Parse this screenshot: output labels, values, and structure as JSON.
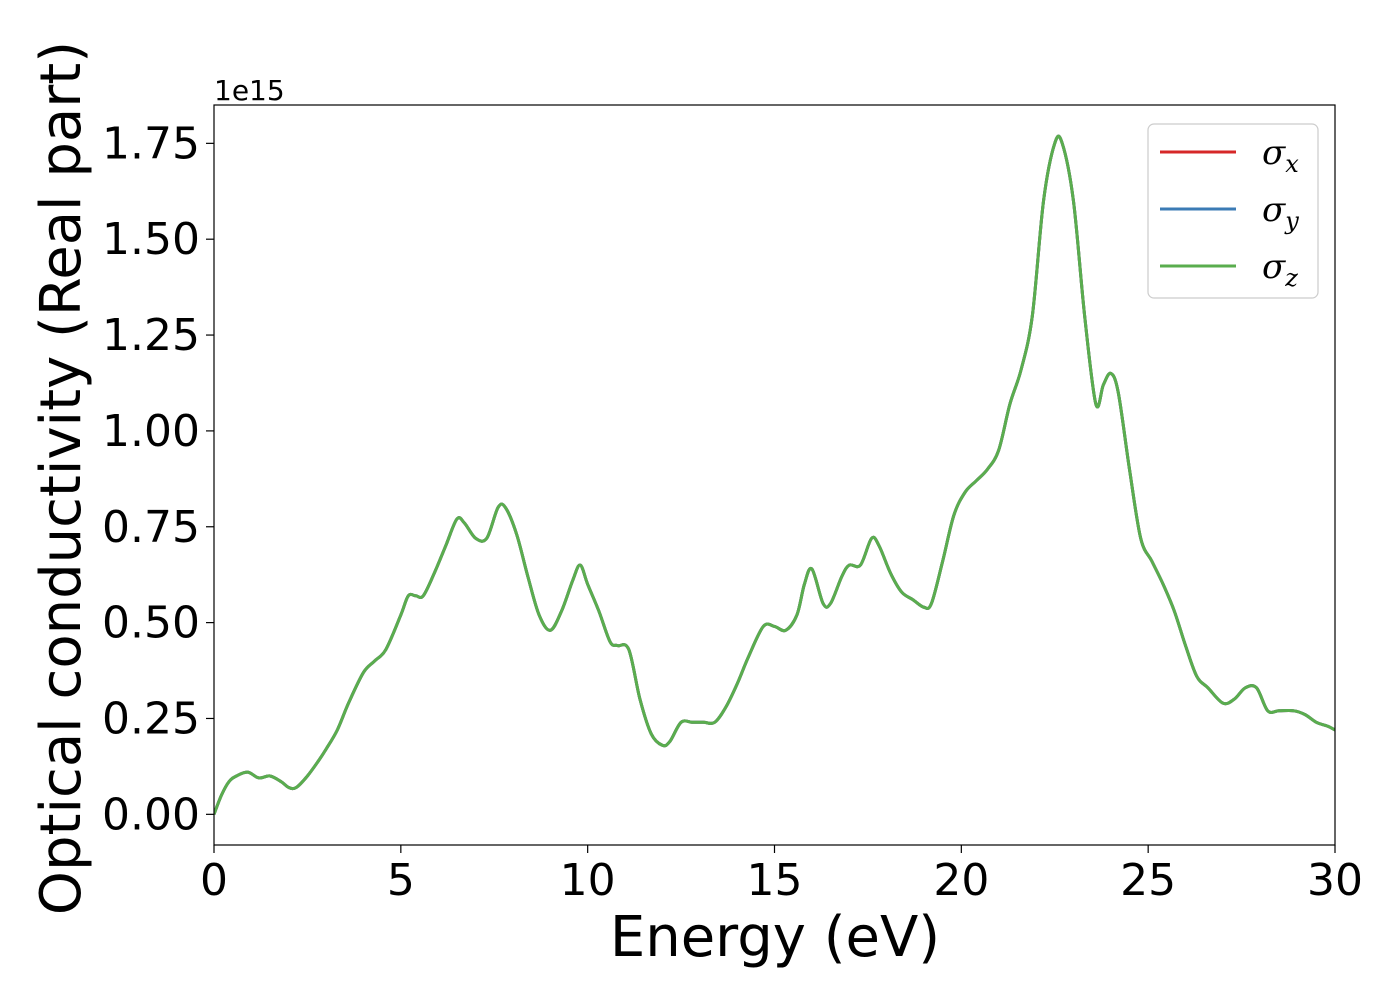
{
  "chart_data": {
    "type": "line",
    "xlabel": "Energy (eV)",
    "ylabel": "Optical conductivity (Real part)",
    "y_offset_label": "1e15",
    "xlim": [
      0,
      30
    ],
    "ylim": [
      -0.08,
      1.85
    ],
    "xticks": [
      0,
      5,
      10,
      15,
      20,
      25,
      30
    ],
    "xtick_labels": [
      "0",
      "5",
      "10",
      "15",
      "20",
      "25",
      "30"
    ],
    "yticks": [
      0.0,
      0.25,
      0.5,
      0.75,
      1.0,
      1.25,
      1.5,
      1.75
    ],
    "ytick_labels": [
      "0.00",
      "0.25",
      "0.50",
      "0.75",
      "1.00",
      "1.25",
      "1.50",
      "1.75"
    ],
    "grid": false,
    "legend_position": "top-right",
    "x": [
      0,
      0.2,
      0.4,
      0.6,
      0.9,
      1.2,
      1.5,
      1.8,
      2.0,
      2.2,
      2.5,
      2.8,
      3.0,
      3.3,
      3.6,
      4.0,
      4.3,
      4.6,
      5.0,
      5.2,
      5.4,
      5.6,
      5.9,
      6.2,
      6.5,
      6.7,
      7.0,
      7.3,
      7.6,
      7.8,
      8.1,
      8.4,
      8.7,
      9.0,
      9.3,
      9.6,
      9.8,
      10.0,
      10.3,
      10.6,
      10.8,
      11.1,
      11.4,
      11.7,
      12.0,
      12.2,
      12.5,
      12.8,
      13.1,
      13.4,
      13.7,
      14.0,
      14.3,
      14.7,
      15.0,
      15.3,
      15.6,
      15.8,
      16.0,
      16.3,
      16.5,
      16.8,
      17.0,
      17.3,
      17.6,
      17.8,
      18.1,
      18.4,
      18.7,
      19.0,
      19.2,
      19.5,
      19.8,
      20.1,
      20.4,
      20.7,
      21.0,
      21.3,
      21.6,
      21.9,
      22.2,
      22.5,
      22.7,
      23.0,
      23.3,
      23.6,
      23.8,
      24.0,
      24.2,
      24.5,
      24.8,
      25.1,
      25.4,
      25.7,
      26.0,
      26.3,
      26.6,
      27.0,
      27.3,
      27.6,
      27.9,
      28.2,
      28.5,
      28.9,
      29.2,
      29.5,
      29.8,
      30.0
    ],
    "series": [
      {
        "name": "σx",
        "sub": "x",
        "color": "#d62728",
        "values": [
          0.0,
          0.05,
          0.085,
          0.1,
          0.11,
          0.095,
          0.1,
          0.085,
          0.07,
          0.07,
          0.1,
          0.14,
          0.17,
          0.22,
          0.29,
          0.37,
          0.4,
          0.43,
          0.52,
          0.57,
          0.57,
          0.57,
          0.63,
          0.7,
          0.77,
          0.76,
          0.72,
          0.72,
          0.8,
          0.8,
          0.73,
          0.62,
          0.52,
          0.48,
          0.53,
          0.61,
          0.65,
          0.6,
          0.53,
          0.45,
          0.44,
          0.43,
          0.3,
          0.21,
          0.18,
          0.19,
          0.24,
          0.24,
          0.24,
          0.24,
          0.28,
          0.34,
          0.41,
          0.49,
          0.49,
          0.48,
          0.52,
          0.6,
          0.64,
          0.55,
          0.55,
          0.62,
          0.65,
          0.65,
          0.72,
          0.7,
          0.63,
          0.58,
          0.56,
          0.54,
          0.55,
          0.66,
          0.78,
          0.84,
          0.87,
          0.9,
          0.95,
          1.07,
          1.16,
          1.3,
          1.6,
          1.75,
          1.75,
          1.6,
          1.3,
          1.07,
          1.12,
          1.15,
          1.1,
          0.9,
          0.72,
          0.66,
          0.6,
          0.53,
          0.44,
          0.36,
          0.33,
          0.29,
          0.3,
          0.33,
          0.33,
          0.27,
          0.27,
          0.27,
          0.26,
          0.24,
          0.23,
          0.22
        ]
      },
      {
        "name": "σy",
        "sub": "y",
        "color": "#3b7bb5",
        "values": [
          0.0,
          0.05,
          0.085,
          0.1,
          0.11,
          0.095,
          0.1,
          0.085,
          0.07,
          0.07,
          0.1,
          0.14,
          0.17,
          0.22,
          0.29,
          0.37,
          0.4,
          0.43,
          0.52,
          0.57,
          0.57,
          0.57,
          0.63,
          0.7,
          0.77,
          0.76,
          0.72,
          0.72,
          0.8,
          0.8,
          0.73,
          0.62,
          0.52,
          0.48,
          0.53,
          0.61,
          0.65,
          0.6,
          0.53,
          0.45,
          0.44,
          0.43,
          0.3,
          0.21,
          0.18,
          0.19,
          0.24,
          0.24,
          0.24,
          0.24,
          0.28,
          0.34,
          0.41,
          0.49,
          0.49,
          0.48,
          0.52,
          0.6,
          0.64,
          0.55,
          0.55,
          0.62,
          0.65,
          0.65,
          0.72,
          0.7,
          0.63,
          0.58,
          0.56,
          0.54,
          0.55,
          0.66,
          0.78,
          0.84,
          0.87,
          0.9,
          0.95,
          1.07,
          1.16,
          1.3,
          1.6,
          1.75,
          1.75,
          1.6,
          1.3,
          1.07,
          1.12,
          1.15,
          1.1,
          0.9,
          0.72,
          0.66,
          0.6,
          0.53,
          0.44,
          0.36,
          0.33,
          0.29,
          0.3,
          0.33,
          0.33,
          0.27,
          0.27,
          0.27,
          0.26,
          0.24,
          0.23,
          0.22
        ]
      },
      {
        "name": "σz",
        "sub": "z",
        "color": "#5aad4e",
        "values": [
          0.0,
          0.05,
          0.085,
          0.1,
          0.11,
          0.095,
          0.1,
          0.085,
          0.07,
          0.07,
          0.1,
          0.14,
          0.17,
          0.22,
          0.29,
          0.37,
          0.4,
          0.43,
          0.52,
          0.57,
          0.57,
          0.57,
          0.63,
          0.7,
          0.77,
          0.76,
          0.72,
          0.72,
          0.8,
          0.8,
          0.73,
          0.62,
          0.52,
          0.48,
          0.53,
          0.61,
          0.65,
          0.6,
          0.53,
          0.45,
          0.44,
          0.43,
          0.3,
          0.21,
          0.18,
          0.19,
          0.24,
          0.24,
          0.24,
          0.24,
          0.28,
          0.34,
          0.41,
          0.49,
          0.49,
          0.48,
          0.52,
          0.6,
          0.64,
          0.55,
          0.55,
          0.62,
          0.65,
          0.65,
          0.72,
          0.7,
          0.63,
          0.58,
          0.56,
          0.54,
          0.55,
          0.66,
          0.78,
          0.84,
          0.87,
          0.9,
          0.95,
          1.07,
          1.16,
          1.3,
          1.6,
          1.75,
          1.75,
          1.6,
          1.3,
          1.07,
          1.12,
          1.15,
          1.1,
          0.9,
          0.72,
          0.66,
          0.6,
          0.53,
          0.44,
          0.36,
          0.33,
          0.29,
          0.3,
          0.33,
          0.33,
          0.27,
          0.27,
          0.27,
          0.26,
          0.24,
          0.23,
          0.22
        ]
      }
    ]
  }
}
